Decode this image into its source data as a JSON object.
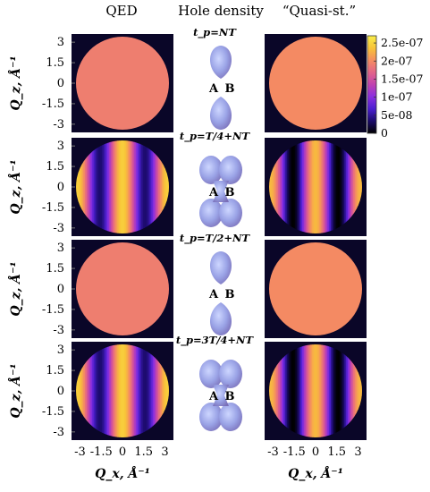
{
  "columns": [
    "QED",
    "Hole density",
    "“Quasi-st.”"
  ],
  "atoms": [
    "A",
    "B"
  ],
  "time_labels": [
    "t_p=NT",
    "t_p=T/4+NT",
    "t_p=T/2+NT",
    "t_p=3T/4+NT"
  ],
  "y_axis_label": "Q_z, Å⁻¹",
  "x_axis_label": "Q_x, Å⁻¹",
  "chart_data": {
    "type": "heatmap",
    "x_ticks": [
      "-3",
      "-1.5",
      "0",
      "1.5",
      "3"
    ],
    "y_ticks": [
      "3",
      "1.5",
      "0",
      "-1.5",
      "-3"
    ],
    "colorbar_ticks": [
      "2.5e-07",
      "2e-07",
      "1.5e-07",
      "1e-07",
      "5e-08",
      "0"
    ],
    "colorbar_values": [
      2.5e-07,
      2e-07,
      1.5e-07,
      1e-07,
      5e-08,
      0
    ],
    "colorbar_range": [
      0,
      2.7e-07
    ],
    "colormap": [
      "#000000",
      "#1a0a6a",
      "#4b1fd0",
      "#8b2fe0",
      "#c042b0",
      "#e26489",
      "#f58d60",
      "#f8c338",
      "#f9ee4a"
    ],
    "qz_range": [
      -3.6,
      3.6
    ],
    "qx_range": [
      -3.6,
      3.6
    ],
    "rows": [
      {
        "time": "t_p=NT",
        "qed": {
          "pattern": "uniform",
          "value": 1.9e-07
        },
        "quasi": {
          "pattern": "uniform",
          "value": 2e-07
        },
        "hole_orientation": "vertical"
      },
      {
        "time": "t_p=T/4+NT",
        "qed": {
          "pattern": "fringes",
          "mean": 1.4e-07,
          "amplitude": 1.05e-07,
          "period": 3.2
        },
        "quasi": {
          "pattern": "fringes",
          "mean": 1.15e-07,
          "amplitude": 1.15e-07,
          "period": 3.2
        },
        "hole_orientation": "clover"
      },
      {
        "time": "t_p=T/2+NT",
        "qed": {
          "pattern": "uniform",
          "value": 1.9e-07
        },
        "quasi": {
          "pattern": "uniform",
          "value": 2e-07
        },
        "hole_orientation": "vertical"
      },
      {
        "time": "t_p=3T/4+NT",
        "qed": {
          "pattern": "fringes",
          "mean": 1.4e-07,
          "amplitude": 1.05e-07,
          "period": 3.2
        },
        "quasi": {
          "pattern": "fringes",
          "mean": 1.15e-07,
          "amplitude": 1.15e-07,
          "period": 3.2
        },
        "hole_orientation": "clover"
      }
    ]
  }
}
